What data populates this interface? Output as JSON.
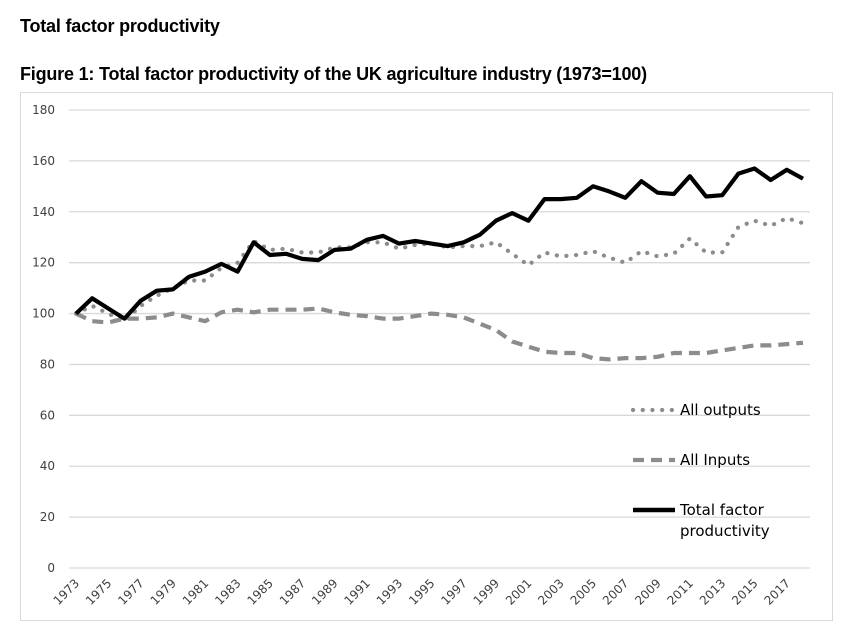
{
  "page": {
    "heading": "Total factor productivity",
    "figure_title": "Figure 1: Total factor productivity of the UK agriculture industry (1973=100)"
  },
  "chart_data": {
    "type": "line",
    "title": "Figure 1: Total factor productivity of the UK agriculture industry (1973=100)",
    "xlabel": "",
    "ylabel": "",
    "ylim": [
      0,
      180
    ],
    "yticks": [
      0,
      20,
      40,
      60,
      80,
      100,
      120,
      140,
      160,
      180
    ],
    "grid": "horizontal",
    "legend_position": "bottom-right",
    "x": [
      1973,
      1974,
      1975,
      1976,
      1977,
      1978,
      1979,
      1980,
      1981,
      1982,
      1983,
      1984,
      1985,
      1986,
      1987,
      1988,
      1989,
      1990,
      1991,
      1992,
      1993,
      1994,
      1995,
      1996,
      1997,
      1998,
      1999,
      2000,
      2001,
      2002,
      2003,
      2004,
      2005,
      2006,
      2007,
      2008,
      2009,
      2010,
      2011,
      2012,
      2013,
      2014,
      2015,
      2016,
      2017,
      2018
    ],
    "xtick_labels": [
      "1973",
      "1975",
      "1977",
      "1979",
      "1981",
      "1983",
      "1985",
      "1987",
      "1989",
      "1991",
      "1993",
      "1995",
      "1997",
      "1999",
      "2001",
      "2003",
      "2005",
      "2007",
      "2009",
      "2011",
      "2013",
      "2015",
      "2017"
    ],
    "series": [
      {
        "name": "All outputs",
        "style": "dotted",
        "color": "#7f7f7f",
        "values": [
          100,
          103,
          100,
          97,
          103,
          107,
          110,
          113,
          113,
          118,
          120,
          128.5,
          125,
          125.5,
          124,
          124,
          126,
          126,
          128,
          128,
          125.5,
          127,
          127.5,
          126,
          126.5,
          126.5,
          128,
          123.5,
          119,
          124,
          122.5,
          123,
          124.5,
          122,
          120,
          124.5,
          122.5,
          123.5,
          129.5,
          124,
          124,
          134,
          136.5,
          134.5,
          137.5,
          135.5
        ]
      },
      {
        "name": "All Inputs",
        "style": "dashed",
        "color": "#808080",
        "values": [
          100,
          97,
          96.5,
          98,
          98,
          98.5,
          100,
          98.5,
          97,
          100.5,
          101.5,
          100.5,
          101.5,
          101.5,
          101.5,
          102,
          100.5,
          99.5,
          99,
          98,
          98,
          99,
          100,
          99.5,
          98.5,
          96,
          93.5,
          89,
          87,
          85,
          84.5,
          84.5,
          82.5,
          82,
          82.5,
          82.5,
          83,
          84.5,
          84.5,
          84.5,
          85.5,
          86.5,
          87.5,
          87.5,
          88,
          88.5
        ]
      },
      {
        "name": "Total factor productivity",
        "style": "solid",
        "color": "#000000",
        "values": [
          100,
          106,
          102,
          98,
          105,
          109,
          109.5,
          114.5,
          116.5,
          119.5,
          116.5,
          128,
          123,
          123.5,
          121.5,
          121,
          125,
          125.5,
          129,
          130.5,
          127.5,
          128.5,
          127.5,
          126.5,
          128,
          131,
          136.5,
          139.5,
          136.5,
          145,
          145,
          145.5,
          150,
          148,
          145.5,
          152,
          147.5,
          147,
          154,
          146,
          146.5,
          155,
          157,
          152.5,
          156.5,
          153
        ]
      }
    ],
    "legend": [
      {
        "label_lines": [
          "All outputs"
        ]
      },
      {
        "label_lines": [
          "All Inputs"
        ]
      },
      {
        "label_lines": [
          "Total factor",
          "productivity"
        ]
      }
    ]
  }
}
